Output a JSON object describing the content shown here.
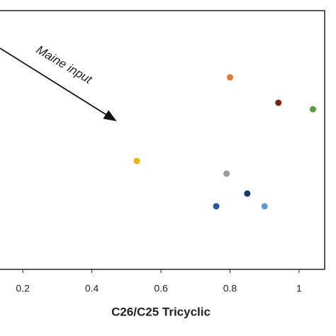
{
  "chart_data": {
    "type": "scatter",
    "x_label": "C26/C25 Tricyclic",
    "annotation": "Maine input",
    "x": [
      0.8,
      0.94,
      1.04,
      0.53,
      0.79,
      0.85,
      0.76,
      0.9
    ],
    "values": [
      0.742,
      0.644,
      0.619,
      0.419,
      0.37,
      0.293,
      0.244,
      0.244
    ],
    "colors": [
      "#e07b39",
      "#7a2410",
      "#5a9e3a",
      "#f0b400",
      "#9a9a9a",
      "#1a3a6a",
      "#2457a8",
      "#5b9bd5"
    ],
    "xlim": [
      0.134,
      1.074
    ],
    "xticks": [
      0.2,
      0.4,
      0.6,
      0.8,
      1
    ],
    "ylim": [
      0,
      1
    ]
  }
}
